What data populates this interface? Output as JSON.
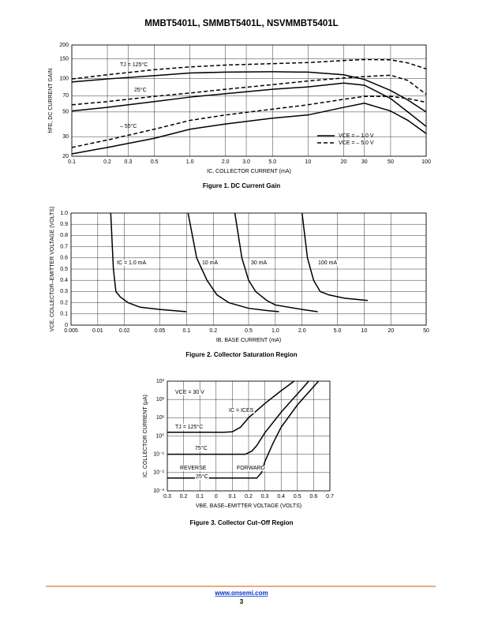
{
  "header": {
    "title": "MMBT5401L, SMMBT5401L, NSVMMBT5401L"
  },
  "chart_data": [
    {
      "type": "line",
      "caption": "Figure 1. DC Current Gain",
      "xlabel": "IC, COLLECTOR CURRENT (mA)",
      "ylabel": "hFE, DC CURRENT GAIN",
      "xlog": true,
      "ylog": true,
      "grid": true,
      "legend": "lower right",
      "xlim": [
        0.1,
        100
      ],
      "ylim": [
        20,
        200
      ],
      "xticks": [
        0.1,
        0.2,
        0.3,
        0.5,
        {
          "value": 1,
          "label": "1.0"
        },
        {
          "value": 2,
          "label": "2.0"
        },
        {
          "value": 3,
          "label": "3.0"
        },
        {
          "value": 5,
          "label": "5.0"
        },
        10,
        20,
        30,
        50,
        100
      ],
      "yticks": [
        20,
        30,
        50,
        70,
        100,
        150,
        200
      ],
      "x": [
        0.1,
        0.2,
        0.5,
        1,
        2,
        5,
        10,
        20,
        30,
        50,
        70,
        100
      ],
      "series": [
        {
          "name": "VCE = – 1.0 V",
          "color": "#000000",
          "dash": false,
          "curves": [
            {
              "label": "TJ = 125°C",
              "values": [
                93,
                99,
                106,
                112,
                114,
                115,
                114,
                108,
                98,
                78,
                64,
                50
              ]
            },
            {
              "label": "25°C",
              "values": [
                51,
                55,
                62,
                68,
                73,
                80,
                84,
                91,
                87,
                66,
                50,
                37
              ]
            },
            {
              "label": "– 55°C",
              "values": [
                21,
                24,
                29,
                35,
                39,
                44,
                47,
                55,
                60,
                51,
                42,
                32
              ]
            }
          ]
        },
        {
          "name": "VCE = – 5.0 V",
          "color": "#000000",
          "dash": true,
          "curves": [
            {
              "values": [
                99,
                108,
                120,
                127,
                132,
                136,
                139,
                145,
                148,
                147,
                138,
                122
              ]
            },
            {
              "values": [
                58,
                62,
                69,
                74,
                80,
                88,
                95,
                101,
                104,
                107,
                96,
                72
              ]
            },
            {
              "values": [
                24,
                28,
                35,
                42,
                47,
                53,
                58,
                65,
                69,
                69,
                66,
                61
              ]
            }
          ]
        }
      ]
    },
    {
      "type": "line",
      "caption": "Figure 2. Collector Saturation Region",
      "xlabel": "IB, BASE CURRENT (mA)",
      "ylabel": "VCE, COLLECTOR–EMITTER VOLTAGE (VOLTS)",
      "xlog": true,
      "grid": true,
      "xlim": [
        0.005,
        50
      ],
      "ylim": [
        0,
        1
      ],
      "xticks": [
        0.005,
        0.01,
        0.02,
        0.05,
        0.1,
        0.2,
        0.5,
        {
          "value": 1,
          "label": "1.0"
        },
        {
          "value": 2,
          "label": "2.0"
        },
        {
          "value": 5,
          "label": "5.0"
        },
        10,
        20,
        50
      ],
      "yticks": [
        0,
        0.1,
        0.2,
        0.3,
        0.4,
        0.5,
        0.6,
        0.7,
        0.8,
        0.9,
        {
          "value": 1,
          "label": "1.0"
        }
      ],
      "series": [
        {
          "name": "IC = 1.0 mA",
          "color": "#000000",
          "x": [
            0.014,
            0.015,
            0.016,
            0.018,
            0.022,
            0.03,
            0.05,
            0.1
          ],
          "values": [
            1,
            0.5,
            0.3,
            0.25,
            0.2,
            0.16,
            0.14,
            0.12
          ]
        },
        {
          "name": "10 mA",
          "color": "#000000",
          "x": [
            0.104,
            0.13,
            0.17,
            0.22,
            0.3,
            0.5,
            0.8,
            1.1
          ],
          "values": [
            1,
            0.6,
            0.4,
            0.27,
            0.2,
            0.15,
            0.13,
            0.12
          ]
        },
        {
          "name": "30 mA",
          "color": "#000000",
          "x": [
            0.35,
            0.42,
            0.5,
            0.6,
            0.8,
            1,
            2,
            3
          ],
          "values": [
            1,
            0.6,
            0.4,
            0.3,
            0.22,
            0.18,
            0.14,
            0.12
          ]
        },
        {
          "name": "100 mA",
          "color": "#000000",
          "x": [
            2,
            2.3,
            2.7,
            3.2,
            4,
            6,
            11
          ],
          "values": [
            1,
            0.6,
            0.4,
            0.3,
            0.27,
            0.24,
            0.22
          ]
        }
      ]
    },
    {
      "type": "line",
      "caption": "Figure 3. Collector Cut–Off Region",
      "xlabel": "VBE, BASE–EMITTER VOLTAGE (VOLTS)",
      "ylabel": "IC, COLLECTOR CURRENT (μA)",
      "ylog": true,
      "grid": true,
      "xlim": [
        -0.3,
        0.7
      ],
      "ylim": [
        0.001,
        1000
      ],
      "xticks": [
        {
          "value": -0.3,
          "label": "0.3"
        },
        {
          "value": -0.2,
          "label": "0.2"
        },
        {
          "value": -0.1,
          "label": "0.1"
        },
        0,
        0.1,
        0.2,
        0.3,
        0.4,
        0.5,
        0.6,
        0.7
      ],
      "yticks": [
        {
          "value": 0.001,
          "label": "10⁻³"
        },
        {
          "value": 0.01,
          "label": "10⁻²"
        },
        {
          "value": 0.1,
          "label": "10⁻¹"
        },
        {
          "value": 1,
          "label": "10⁰"
        },
        {
          "value": 10,
          "label": "10¹"
        },
        {
          "value": 100,
          "label": "10²"
        },
        {
          "value": 1000,
          "label": "10³"
        }
      ],
      "series": [
        {
          "name": "TJ = 125°C",
          "color": "#000000",
          "x": [
            -0.3,
            0.05,
            0.1,
            0.15,
            0.2,
            0.3,
            0.4,
            0.48
          ],
          "values": [
            1.6,
            1.6,
            1.7,
            3,
            10,
            60,
            300,
            1000
          ]
        },
        {
          "name": "75°C",
          "color": "#000000",
          "x": [
            -0.3,
            0.18,
            0.22,
            0.25,
            0.3,
            0.4,
            0.5,
            0.57
          ],
          "values": [
            0.1,
            0.1,
            0.15,
            0.3,
            1.5,
            20,
            200,
            1000
          ]
        },
        {
          "name": "25°C",
          "color": "#000000",
          "x": [
            -0.3,
            0.25,
            0.28,
            0.3,
            0.35,
            0.4,
            0.5,
            0.6,
            0.63
          ],
          "values": [
            0.005,
            0.005,
            0.01,
            0.04,
            0.4,
            3,
            50,
            500,
            1000
          ]
        }
      ],
      "annotations": [
        "VCE = 30 V",
        "IC = ICES",
        "REVERSE",
        "FORWARD"
      ]
    }
  ],
  "footer": {
    "link": "www.onsemi.com",
    "page": 3
  }
}
